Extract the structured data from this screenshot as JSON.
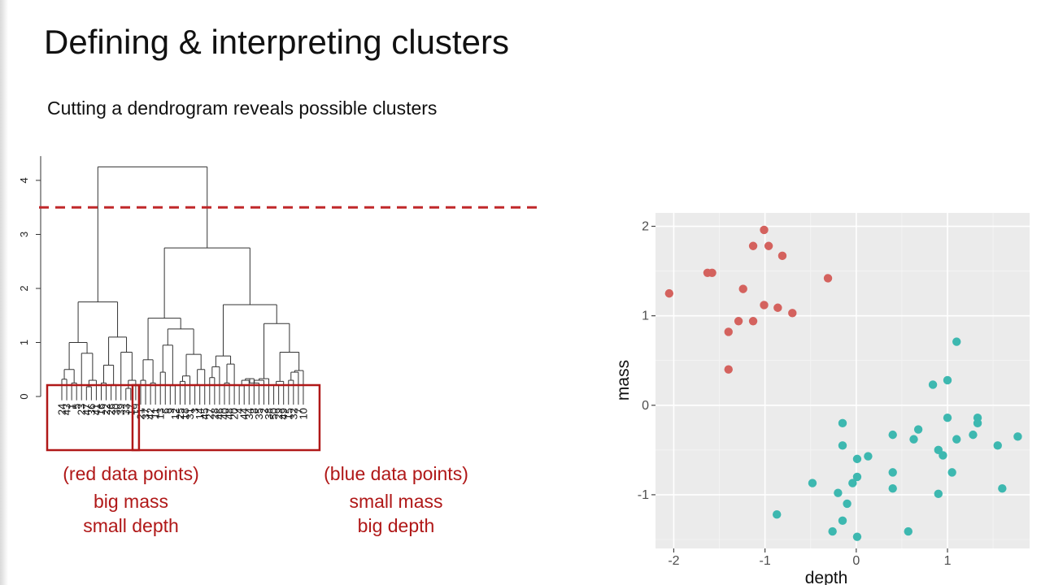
{
  "slide": {
    "title": "Defining & interpreting clusters",
    "subtitle": "Cutting a dendrogram reveals possible clusters"
  },
  "dendrogram": {
    "y_ticks": [
      "0",
      "1",
      "2",
      "3",
      "4"
    ],
    "cut_height": 3.5,
    "root_height": 4.25,
    "red_leaves": [
      "24",
      "43",
      "1",
      "5",
      "23",
      "47",
      "36",
      "41",
      "16",
      "22",
      "26",
      "30",
      "39",
      "33",
      "17",
      "19"
    ],
    "blue_leaves": [
      "21",
      "37",
      "42",
      "11",
      "13",
      "6",
      "9",
      "12",
      "25",
      "18",
      "31",
      "3",
      "14",
      "45",
      "27",
      "28",
      "46",
      "40",
      "48",
      "20",
      "4",
      "44",
      "34",
      "8",
      "35",
      "2",
      "38",
      "50",
      "29",
      "49",
      "15",
      "32",
      "7",
      "10"
    ],
    "line_color": "#333333",
    "cut_color": "#c0282a"
  },
  "cluster_labels": {
    "red": {
      "heading": "(red data points)",
      "line1": "big mass",
      "line2": "small depth"
    },
    "blue": {
      "heading": "(blue data points)",
      "line1": "small mass",
      "line2": "big depth"
    }
  },
  "chart_data": {
    "type": "scatter",
    "xlabel": "depth",
    "ylabel": "mass",
    "xlim": [
      -2.2,
      1.9
    ],
    "ylim": [
      -1.6,
      2.15
    ],
    "x_ticks": [
      "-2",
      "-1",
      "0",
      "1"
    ],
    "y_ticks": [
      "-1",
      "0",
      "1",
      "2"
    ],
    "panel_bg": "#ebebeb",
    "series": [
      {
        "color": "#d4625e",
        "points": [
          [
            -2.05,
            1.25
          ],
          [
            -1.63,
            1.48
          ],
          [
            -1.58,
            1.48
          ],
          [
            -1.4,
            0.82
          ],
          [
            -1.4,
            0.4
          ],
          [
            -1.29,
            0.94
          ],
          [
            -1.24,
            1.3
          ],
          [
            -1.13,
            1.78
          ],
          [
            -1.13,
            0.94
          ],
          [
            -1.01,
            1.96
          ],
          [
            -1.01,
            1.12
          ],
          [
            -0.96,
            1.78
          ],
          [
            -0.86,
            1.09
          ],
          [
            -0.81,
            1.67
          ],
          [
            -0.7,
            1.03
          ],
          [
            -0.31,
            1.42
          ]
        ]
      },
      {
        "color": "#3db8b0",
        "points": [
          [
            -0.87,
            -1.22
          ],
          [
            -0.48,
            -0.87
          ],
          [
            -0.26,
            -1.41
          ],
          [
            -0.2,
            -0.98
          ],
          [
            -0.15,
            -1.29
          ],
          [
            -0.15,
            -0.45
          ],
          [
            -0.15,
            -0.2
          ],
          [
            -0.1,
            -1.1
          ],
          [
            -0.04,
            -0.87
          ],
          [
            0.01,
            -0.8
          ],
          [
            0.01,
            -0.6
          ],
          [
            0.01,
            -1.47
          ],
          [
            0.13,
            -0.57
          ],
          [
            0.4,
            -0.33
          ],
          [
            0.4,
            -0.75
          ],
          [
            0.4,
            -0.93
          ],
          [
            0.57,
            -1.41
          ],
          [
            0.63,
            -0.38
          ],
          [
            0.68,
            -0.27
          ],
          [
            0.84,
            0.23
          ],
          [
            0.9,
            -0.5
          ],
          [
            0.9,
            -0.99
          ],
          [
            0.95,
            -0.56
          ],
          [
            1.0,
            0.28
          ],
          [
            1.0,
            -0.14
          ],
          [
            1.05,
            -0.75
          ],
          [
            1.1,
            -0.38
          ],
          [
            1.1,
            0.71
          ],
          [
            1.28,
            -0.33
          ],
          [
            1.33,
            -0.14
          ],
          [
            1.33,
            -0.2
          ],
          [
            1.55,
            -0.45
          ],
          [
            1.6,
            -0.93
          ],
          [
            1.77,
            -0.35
          ]
        ]
      }
    ]
  }
}
